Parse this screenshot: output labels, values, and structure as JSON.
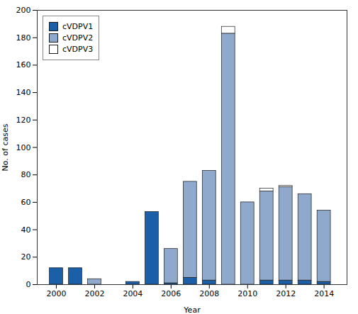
{
  "chart_data": {
    "type": "bar",
    "stacked": true,
    "x": [
      2000,
      2001,
      2002,
      2003,
      2004,
      2005,
      2006,
      2007,
      2008,
      2009,
      2010,
      2011,
      2012,
      2013,
      2014
    ],
    "series": [
      {
        "name": "cVDPV1",
        "color": "#1a5fa8",
        "values": [
          12,
          12,
          0,
          0,
          2,
          53,
          1,
          5,
          3,
          0,
          0,
          3,
          3,
          3,
          2
        ]
      },
      {
        "name": "cVDPV2",
        "color": "#8fa9cc",
        "values": [
          0,
          0,
          4,
          0,
          0,
          0,
          25,
          70,
          80,
          183,
          60,
          65,
          68,
          63,
          52
        ]
      },
      {
        "name": "cVDPV3",
        "color": "#ffffff",
        "values": [
          0,
          0,
          0,
          0,
          0,
          0,
          0,
          0,
          0,
          5,
          0,
          2,
          1,
          0,
          0
        ]
      }
    ],
    "xlabel": "Year",
    "ylabel": "No. of cases",
    "xlim": [
      1999.0,
      2015.2
    ],
    "ylim": [
      0,
      200
    ],
    "xticks": [
      2000,
      2002,
      2004,
      2006,
      2008,
      2010,
      2012,
      2014
    ],
    "yticks": [
      0,
      20,
      40,
      60,
      80,
      100,
      120,
      140,
      160,
      180,
      200
    ],
    "legend": "upper left"
  }
}
